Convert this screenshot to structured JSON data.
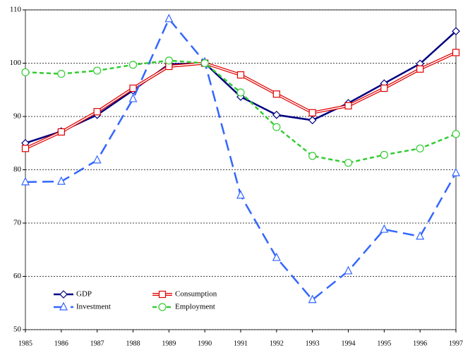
{
  "chart_data": {
    "type": "line",
    "x": [
      1985,
      1986,
      1987,
      1988,
      1989,
      1990,
      1991,
      1992,
      1993,
      1994,
      1995,
      1996,
      1997
    ],
    "xlim": [
      1985,
      1997
    ],
    "xticks": [
      1985,
      1986,
      1987,
      1988,
      1989,
      1990,
      1991,
      1992,
      1993,
      1994,
      1995,
      1996,
      1997
    ],
    "ylim": [
      50,
      110
    ],
    "yticks": [
      50,
      60,
      70,
      80,
      90,
      100,
      110
    ],
    "grid": true,
    "legend": "lower-left",
    "series": [
      {
        "name": "GDP",
        "color": "#000080",
        "marker": "diamond",
        "dash": "solid",
        "values": [
          85.0,
          87.2,
          90.3,
          94.9,
          99.8,
          100,
          93.7,
          90.3,
          89.3,
          92.5,
          96.2,
          99.9,
          106.0
        ]
      },
      {
        "name": "Consumption",
        "color": "#e00000",
        "marker": "square",
        "dash": "double",
        "values": [
          84.0,
          87.1,
          90.9,
          95.3,
          99.4,
          100,
          97.8,
          94.2,
          90.7,
          92.0,
          95.3,
          98.9,
          102.0
        ]
      },
      {
        "name": "Investment",
        "color": "#3366ff",
        "marker": "triangle",
        "dash": "long",
        "values": [
          77.7,
          77.8,
          81.8,
          93.3,
          108.3,
          100.2,
          75.2,
          63.5,
          55.6,
          61.0,
          68.8,
          67.5,
          79.4
        ]
      },
      {
        "name": "Employment",
        "color": "#33cc33",
        "marker": "circle",
        "dash": "short",
        "values": [
          98.3,
          98.0,
          98.6,
          99.7,
          100.5,
          100.0,
          94.5,
          88.0,
          82.6,
          81.3,
          82.8,
          84.0,
          86.7
        ]
      }
    ]
  }
}
